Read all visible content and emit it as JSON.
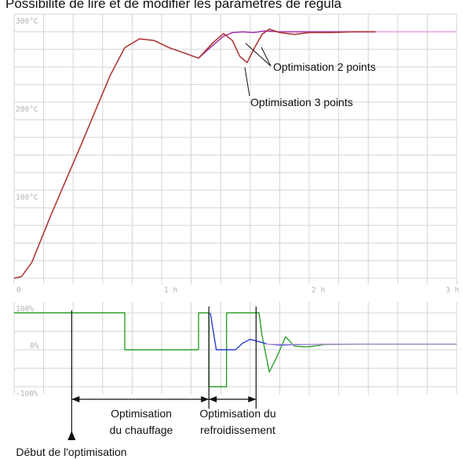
{
  "header_text": "Possibilité de lire et de modifier les paramètres de régula",
  "colors": {
    "grid": "#d4d4d4",
    "ticks": "#b0b0b0",
    "temp_3pt": "#b03a3a",
    "temp_2pt": "#a43aa8",
    "setpoint": "#e2a8e2",
    "duty_heating": "#2ba02b",
    "duty_cooling": "#2b3fd0",
    "ink": "#111111"
  },
  "chart_data": [
    {
      "type": "line",
      "title": "",
      "xlabel": "",
      "ylabel": "",
      "x_ticks": [
        "0",
        "1 h",
        "2 h",
        "3 h"
      ],
      "y_ticks": [
        "100°C",
        "200°C",
        "300°C"
      ],
      "xlim": [
        0,
        3
      ],
      "ylim": [
        0,
        300
      ],
      "grid": true,
      "series": [
        {
          "name": "Optimisation 3 points",
          "x": [
            0,
            0.05,
            0.12,
            0.25,
            0.45,
            0.65,
            0.75,
            0.85,
            0.95,
            1.05,
            1.15,
            1.25,
            1.35,
            1.42,
            1.48,
            1.53,
            1.58,
            1.63,
            1.68,
            1.73,
            1.8,
            1.9,
            2.0,
            2.15,
            2.3,
            2.45
          ],
          "y": [
            0,
            2,
            18,
            72,
            150,
            230,
            262,
            272,
            270,
            262,
            256,
            250,
            268,
            278,
            270,
            252,
            245,
            262,
            277,
            283,
            279,
            277,
            279,
            279,
            280,
            280
          ]
        },
        {
          "name": "Optimisation 2 points",
          "x": [
            1.25,
            1.35,
            1.42,
            1.48,
            1.55,
            1.62,
            1.7,
            1.8,
            1.95,
            2.1,
            2.3,
            2.45
          ],
          "y": [
            250,
            265,
            275,
            279,
            280,
            279,
            281,
            280,
            280,
            280,
            280,
            280
          ]
        },
        {
          "name": "",
          "x": [
            2.45,
            3
          ],
          "y": [
            280,
            280
          ]
        }
      ],
      "annotations": [
        "Optimisation 2 points",
        "Optimisation 3 points"
      ]
    },
    {
      "type": "line",
      "title": "",
      "xlabel": "",
      "ylabel": "",
      "y_ticks": [
        "100%",
        "0%",
        "-100%"
      ],
      "ylim": [
        -100,
        100
      ],
      "xlim": [
        0,
        3
      ],
      "grid": true,
      "series": [
        {
          "name": "",
          "x": [
            0,
            0.75,
            0.75,
            1.25,
            1.25,
            1.32,
            1.32,
            1.44,
            1.44,
            1.5,
            1.5,
            1.66,
            1.68,
            1.73,
            1.78,
            1.84,
            1.9,
            1.96,
            2.0,
            2.1,
            2.3,
            3
          ],
          "y": [
            100,
            100,
            0,
            0,
            100,
            100,
            -100,
            -100,
            100,
            100,
            100,
            100,
            40,
            -60,
            -20,
            35,
            10,
            8,
            8,
            14,
            15,
            15
          ]
        },
        {
          "name": "",
          "x": [
            1.33,
            1.37,
            1.44,
            1.5,
            1.55,
            1.6,
            1.66,
            1.72,
            1.8,
            1.9,
            2.1,
            3
          ],
          "y": [
            100,
            0,
            0,
            0,
            18,
            28,
            22,
            15,
            13,
            14,
            15,
            15
          ]
        }
      ]
    }
  ],
  "phase_labels": {
    "heating": [
      "Optimisation",
      "du chauffage"
    ],
    "cooling": [
      "Optimisation du",
      "refroidissement"
    ],
    "start": "Début de l'optimisation"
  }
}
